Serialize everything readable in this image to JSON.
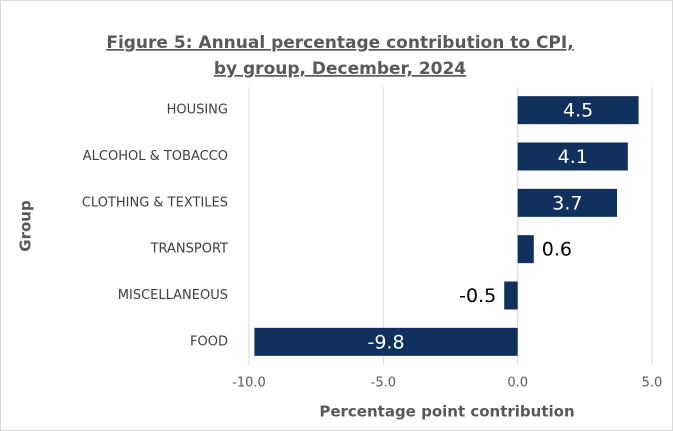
{
  "chart_data": {
    "type": "barh",
    "title": [
      "Figure 5: Annual percentage contribution to CPI,",
      "by group, December,  2024"
    ],
    "categories": [
      "HOUSING",
      "ALCOHOL & TOBACCO",
      "CLOTHING & TEXTILES",
      "TRANSPORT",
      "MISCELLANEOUS",
      "FOOD"
    ],
    "values": [
      4.5,
      4.1,
      3.7,
      0.6,
      -0.5,
      -9.8
    ],
    "color": "#10305e",
    "xlabel": "Percentage point contribution",
    "ylabel": "Group",
    "xlim": [
      -10,
      5
    ],
    "xticks": [
      {
        "value": -10,
        "label": "-10.0"
      },
      {
        "value": -5,
        "label": "-5.0"
      },
      {
        "value": 0,
        "label": "0.0"
      },
      {
        "value": 5,
        "label": "5.0"
      }
    ],
    "grid": true
  }
}
